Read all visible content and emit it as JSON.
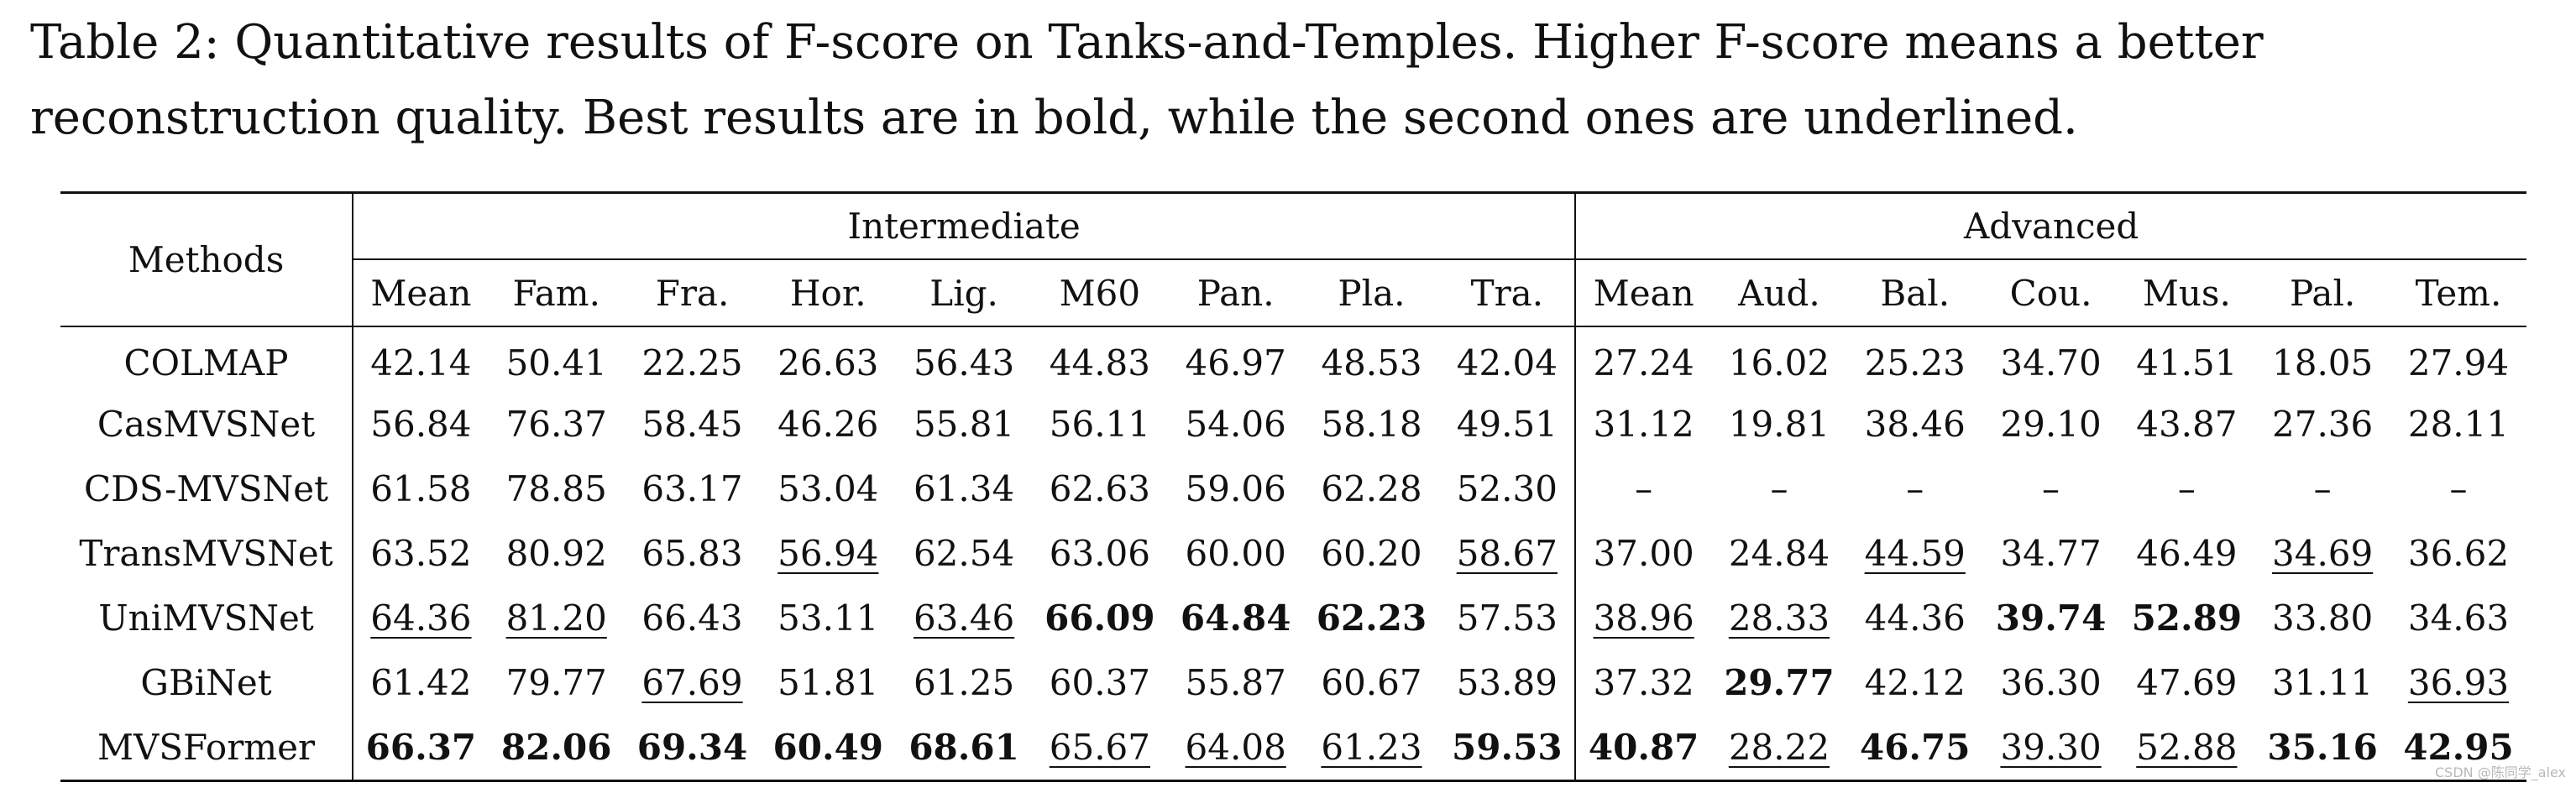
{
  "caption": "Table 2: Quantitative results of F-score on Tanks-and-Temples. Higher F-score means a better reconstruction quality. Best results are in bold, while the second ones are underlined.",
  "table": {
    "method_header": "Methods",
    "groups": [
      "Intermediate",
      "Advanced"
    ],
    "intermediate_columns": [
      "Mean",
      "Fam.",
      "Fra.",
      "Hor.",
      "Lig.",
      "M60",
      "Pan.",
      "Pla.",
      "Tra."
    ],
    "advanced_columns": [
      "Mean",
      "Aud.",
      "Bal.",
      "Cou.",
      "Mus.",
      "Pal.",
      "Tem."
    ],
    "rows": [
      {
        "method": "COLMAP",
        "values": [
          "42.14",
          "50.41",
          "22.25",
          "26.63",
          "56.43",
          "44.83",
          "46.97",
          "48.53",
          "42.04",
          "27.24",
          "16.02",
          "25.23",
          "34.70",
          "41.51",
          "18.05",
          "27.94"
        ]
      },
      {
        "method": "CasMVSNet",
        "values": [
          "56.84",
          "76.37",
          "58.45",
          "46.26",
          "55.81",
          "56.11",
          "54.06",
          "58.18",
          "49.51",
          "31.12",
          "19.81",
          "38.46",
          "29.10",
          "43.87",
          "27.36",
          "28.11"
        ]
      },
      {
        "method": "CDS-MVSNet",
        "values": [
          "61.58",
          "78.85",
          "63.17",
          "53.04",
          "61.34",
          "62.63",
          "59.06",
          "62.28",
          "52.30",
          "–",
          "–",
          "–",
          "–",
          "–",
          "–",
          "–"
        ]
      },
      {
        "method": "TransMVSNet",
        "values": [
          "63.52",
          "80.92",
          "65.83",
          "56.94",
          "62.54",
          "63.06",
          "60.00",
          "60.20",
          "58.67",
          "37.00",
          "24.84",
          "44.59",
          "34.77",
          "46.49",
          "34.69",
          "36.62"
        ]
      },
      {
        "method": "UniMVSNet",
        "values": [
          "64.36",
          "81.20",
          "66.43",
          "53.11",
          "63.46",
          "66.09",
          "64.84",
          "62.23",
          "57.53",
          "38.96",
          "28.33",
          "44.36",
          "39.74",
          "52.89",
          "33.80",
          "34.63"
        ]
      },
      {
        "method": "GBiNet",
        "values": [
          "61.42",
          "79.77",
          "67.69",
          "51.81",
          "61.25",
          "60.37",
          "55.87",
          "60.67",
          "53.89",
          "37.32",
          "29.77",
          "42.12",
          "36.30",
          "47.69",
          "31.11",
          "36.93"
        ]
      },
      {
        "method": "MVSFormer",
        "values": [
          "66.37",
          "82.06",
          "69.34",
          "60.49",
          "68.61",
          "65.67",
          "64.08",
          "61.23",
          "59.53",
          "40.87",
          "28.22",
          "46.75",
          "39.30",
          "52.88",
          "35.16",
          "42.95"
        ]
      }
    ],
    "bold_cells": [
      [
        4,
        5
      ],
      [
        4,
        6
      ],
      [
        4,
        7
      ],
      [
        4,
        12
      ],
      [
        4,
        13
      ],
      [
        5,
        10
      ],
      [
        6,
        0
      ],
      [
        6,
        1
      ],
      [
        6,
        2
      ],
      [
        6,
        3
      ],
      [
        6,
        4
      ],
      [
        6,
        8
      ],
      [
        6,
        9
      ],
      [
        6,
        11
      ],
      [
        6,
        14
      ],
      [
        6,
        15
      ]
    ],
    "underlined_cells": [
      [
        3,
        3
      ],
      [
        3,
        8
      ],
      [
        3,
        11
      ],
      [
        3,
        14
      ],
      [
        4,
        0
      ],
      [
        4,
        1
      ],
      [
        4,
        4
      ],
      [
        4,
        9
      ],
      [
        4,
        10
      ],
      [
        5,
        2
      ],
      [
        5,
        15
      ],
      [
        6,
        5
      ],
      [
        6,
        6
      ],
      [
        6,
        7
      ],
      [
        6,
        10
      ],
      [
        6,
        12
      ],
      [
        6,
        13
      ]
    ],
    "bold_methods": [
      6
    ]
  },
  "watermark": "CSDN @陈同学_alex"
}
